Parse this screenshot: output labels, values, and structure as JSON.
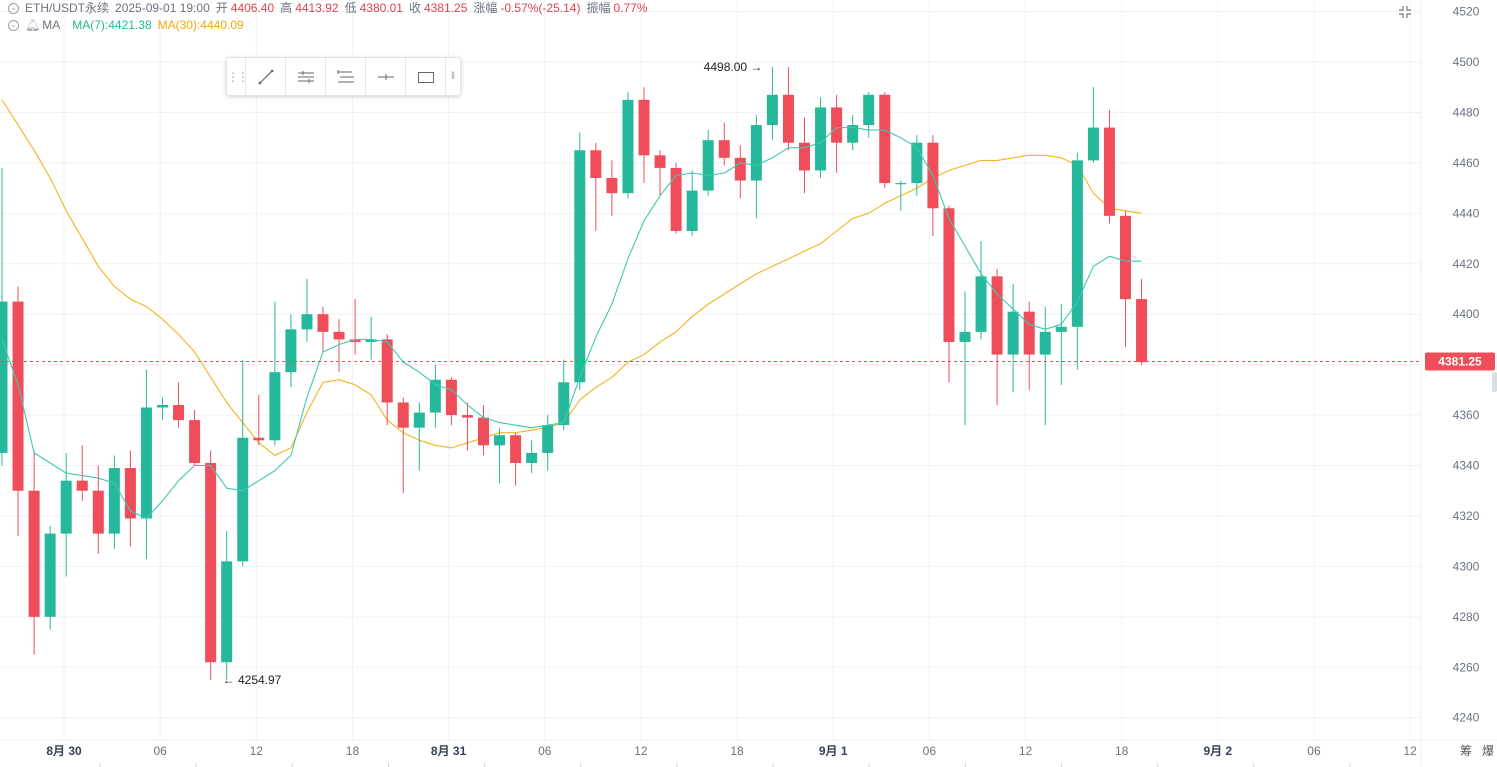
{
  "header": {
    "symbol": "ETH/USDT永续",
    "datetime": "2025-09-01 19:00",
    "open_label": "开",
    "open": "4406.40",
    "high_label": "高",
    "high": "4413.92",
    "low_label": "低",
    "low": "4380.01",
    "close_label": "收",
    "close": "4381.25",
    "change_label": "涨幅",
    "change": "-0.57%(-25.14)",
    "amplitude_label": "振幅",
    "amplitude": "0.77%",
    "ma_label": "MA",
    "ma7": "MA(7):4421.38",
    "ma30": "MA(30):4440.09"
  },
  "colors": {
    "up": "#26b89a",
    "down": "#ef4d5a",
    "ma7": "#3dc9b0",
    "ma30": "#f5b21e",
    "grid": "#f1f2f4",
    "axis_text": "#6b7280",
    "price_tag": "#ef4d5a"
  },
  "toolbar_icons": [
    "trend-line-icon",
    "parallel-lines-icon",
    "channel-icon",
    "horizontal-ray-icon",
    "rectangle-icon"
  ],
  "fullscreen_icon": "fullscreen-icon",
  "bottom_buttons": [
    "筹",
    "爆"
  ],
  "chart_data": {
    "type": "candlestick",
    "interval_hours": 1,
    "ylim": [
      4230,
      4525
    ],
    "y_ticks": [
      4240,
      4260,
      4280,
      4300,
      4320,
      4340,
      4360,
      4380,
      4400,
      4420,
      4440,
      4460,
      4480,
      4500,
      4520
    ],
    "x_tick_labels": [
      "8月 30",
      "06",
      "12",
      "18",
      "8月 31",
      "06",
      "12",
      "18",
      "9月 1",
      "06",
      "12",
      "18",
      "9月 2",
      "06",
      "12"
    ],
    "last_price": "4381.25",
    "annotations": {
      "high": "4498.00",
      "low": "4254.97"
    },
    "candles": [
      {
        "o": 4345,
        "h": 4458,
        "l": 4340,
        "c": 4405
      },
      {
        "o": 4405,
        "h": 4411,
        "l": 4312,
        "c": 4330
      },
      {
        "o": 4330,
        "h": 4346,
        "l": 4265,
        "c": 4280
      },
      {
        "o": 4280,
        "h": 4316,
        "l": 4275,
        "c": 4313
      },
      {
        "o": 4313,
        "h": 4345,
        "l": 4296,
        "c": 4334
      },
      {
        "o": 4334,
        "h": 4348,
        "l": 4326,
        "c": 4330
      },
      {
        "o": 4330,
        "h": 4340,
        "l": 4305,
        "c": 4313
      },
      {
        "o": 4313,
        "h": 4344,
        "l": 4307,
        "c": 4339
      },
      {
        "o": 4339,
        "h": 4346,
        "l": 4308,
        "c": 4319
      },
      {
        "o": 4319,
        "h": 4378,
        "l": 4303,
        "c": 4363
      },
      {
        "o": 4363,
        "h": 4367,
        "l": 4358,
        "c": 4364
      },
      {
        "o": 4364,
        "h": 4373,
        "l": 4355,
        "c": 4358
      },
      {
        "o": 4358,
        "h": 4362,
        "l": 4340,
        "c": 4341
      },
      {
        "o": 4341,
        "h": 4346,
        "l": 4255,
        "c": 4262
      },
      {
        "o": 4262,
        "h": 4314,
        "l": 4255,
        "c": 4302
      },
      {
        "o": 4302,
        "h": 4382,
        "l": 4300,
        "c": 4351
      },
      {
        "o": 4351,
        "h": 4368,
        "l": 4348,
        "c": 4350
      },
      {
        "o": 4350,
        "h": 4405,
        "l": 4348,
        "c": 4377
      },
      {
        "o": 4377,
        "h": 4400,
        "l": 4371,
        "c": 4394
      },
      {
        "o": 4394,
        "h": 4414,
        "l": 4389,
        "c": 4400
      },
      {
        "o": 4400,
        "h": 4403,
        "l": 4385,
        "c": 4393
      },
      {
        "o": 4393,
        "h": 4398,
        "l": 4377,
        "c": 4390
      },
      {
        "o": 4390,
        "h": 4406,
        "l": 4384,
        "c": 4389
      },
      {
        "o": 4389,
        "h": 4399,
        "l": 4382,
        "c": 4390
      },
      {
        "o": 4390,
        "h": 4392,
        "l": 4356,
        "c": 4365
      },
      {
        "o": 4365,
        "h": 4367,
        "l": 4329,
        "c": 4355
      },
      {
        "o": 4355,
        "h": 4365,
        "l": 4338,
        "c": 4361
      },
      {
        "o": 4361,
        "h": 4380,
        "l": 4355,
        "c": 4374
      },
      {
        "o": 4374,
        "h": 4375,
        "l": 4356,
        "c": 4360
      },
      {
        "o": 4360,
        "h": 4365,
        "l": 4346,
        "c": 4359
      },
      {
        "o": 4359,
        "h": 4364,
        "l": 4344,
        "c": 4348
      },
      {
        "o": 4348,
        "h": 4355,
        "l": 4333,
        "c": 4352
      },
      {
        "o": 4352,
        "h": 4353,
        "l": 4332,
        "c": 4341
      },
      {
        "o": 4341,
        "h": 4350,
        "l": 4337,
        "c": 4345
      },
      {
        "o": 4345,
        "h": 4360,
        "l": 4338,
        "c": 4356
      },
      {
        "o": 4356,
        "h": 4382,
        "l": 4354,
        "c": 4373
      },
      {
        "o": 4373,
        "h": 4472,
        "l": 4370,
        "c": 4465
      },
      {
        "o": 4465,
        "h": 4468,
        "l": 4433,
        "c": 4454
      },
      {
        "o": 4454,
        "h": 4461,
        "l": 4439,
        "c": 4448
      },
      {
        "o": 4448,
        "h": 4488,
        "l": 4446,
        "c": 4485
      },
      {
        "o": 4485,
        "h": 4490,
        "l": 4452,
        "c": 4463
      },
      {
        "o": 4463,
        "h": 4465,
        "l": 4447,
        "c": 4458
      },
      {
        "o": 4458,
        "h": 4460,
        "l": 4432,
        "c": 4433
      },
      {
        "o": 4433,
        "h": 4457,
        "l": 4431,
        "c": 4449
      },
      {
        "o": 4449,
        "h": 4473,
        "l": 4447,
        "c": 4469
      },
      {
        "o": 4469,
        "h": 4476,
        "l": 4459,
        "c": 4462
      },
      {
        "o": 4462,
        "h": 4467,
        "l": 4446,
        "c": 4453
      },
      {
        "o": 4453,
        "h": 4479,
        "l": 4438,
        "c": 4475
      },
      {
        "o": 4475,
        "h": 4498,
        "l": 4469,
        "c": 4487
      },
      {
        "o": 4487,
        "h": 4498,
        "l": 4465,
        "c": 4468
      },
      {
        "o": 4468,
        "h": 4478,
        "l": 4448,
        "c": 4457
      },
      {
        "o": 4457,
        "h": 4486,
        "l": 4454,
        "c": 4482
      },
      {
        "o": 4482,
        "h": 4487,
        "l": 4456,
        "c": 4468
      },
      {
        "o": 4468,
        "h": 4479,
        "l": 4465,
        "c": 4475
      },
      {
        "o": 4475,
        "h": 4488,
        "l": 4470,
        "c": 4487
      },
      {
        "o": 4487,
        "h": 4488,
        "l": 4450,
        "c": 4452
      },
      {
        "o": 4452,
        "h": 4453,
        "l": 4441,
        "c": 4452
      },
      {
        "o": 4452,
        "h": 4471,
        "l": 4447,
        "c": 4468
      },
      {
        "o": 4468,
        "h": 4471,
        "l": 4431,
        "c": 4442
      },
      {
        "o": 4442,
        "h": 4443,
        "l": 4373,
        "c": 4389
      },
      {
        "o": 4389,
        "h": 4409,
        "l": 4356,
        "c": 4393
      },
      {
        "o": 4393,
        "h": 4429,
        "l": 4390,
        "c": 4415
      },
      {
        "o": 4415,
        "h": 4418,
        "l": 4364,
        "c": 4384
      },
      {
        "o": 4384,
        "h": 4412,
        "l": 4369,
        "c": 4401
      },
      {
        "o": 4401,
        "h": 4405,
        "l": 4370,
        "c": 4384
      },
      {
        "o": 4384,
        "h": 4403,
        "l": 4356,
        "c": 4393
      },
      {
        "o": 4393,
        "h": 4404,
        "l": 4372,
        "c": 4395
      },
      {
        "o": 4395,
        "h": 4464,
        "l": 4378,
        "c": 4461
      },
      {
        "o": 4461,
        "h": 4490,
        "l": 4460,
        "c": 4474
      },
      {
        "o": 4474,
        "h": 4481,
        "l": 4436,
        "c": 4439
      },
      {
        "o": 4439,
        "h": 4441,
        "l": 4387,
        "c": 4406
      },
      {
        "o": 4406,
        "h": 4414,
        "l": 4380,
        "c": 4381
      }
    ],
    "ma7": [
      4390,
      4372,
      4345,
      4341,
      4337,
      4336,
      4335,
      4333,
      4322,
      4319,
      4326,
      4334,
      4340,
      4340,
      4331,
      4330,
      4334,
      4338,
      4344,
      4367,
      4385,
      4388,
      4390,
      4390,
      4389,
      4381,
      4377,
      4372,
      4370,
      4364,
      4359,
      4357,
      4356,
      4355,
      4356,
      4357,
      4375,
      4391,
      4404,
      4422,
      4437,
      4447,
      4455,
      4456,
      4455,
      4456,
      4460,
      4459,
      4462,
      4466,
      4466,
      4468,
      4474,
      4474,
      4473,
      4473,
      4470,
      4466,
      4455,
      4438,
      4427,
      4416,
      4408,
      4402,
      4396,
      4394,
      4396,
      4405,
      4419,
      4423,
      4421,
      4421
    ],
    "ma30": [
      4485,
      4475,
      4465,
      4454,
      4441,
      4430,
      4419,
      4411,
      4406,
      4403,
      4398,
      4392,
      4385,
      4375,
      4365,
      4357,
      4349,
      4344,
      4347,
      4361,
      4373,
      4374,
      4372,
      4368,
      4358,
      4353,
      4350,
      4348,
      4347,
      4349,
      4351,
      4353,
      4353,
      4354,
      4355,
      4357,
      4366,
      4371,
      4375,
      4381,
      4384,
      4389,
      4393,
      4399,
      4404,
      4408,
      4412,
      4416,
      4419,
      4422,
      4425,
      4428,
      4433,
      4438,
      4440,
      4444,
      4447,
      4450,
      4454,
      4457,
      4459,
      4461,
      4461,
      4462,
      4463,
      4463,
      4462,
      4459,
      4448,
      4442,
      4441,
      4440
    ]
  }
}
